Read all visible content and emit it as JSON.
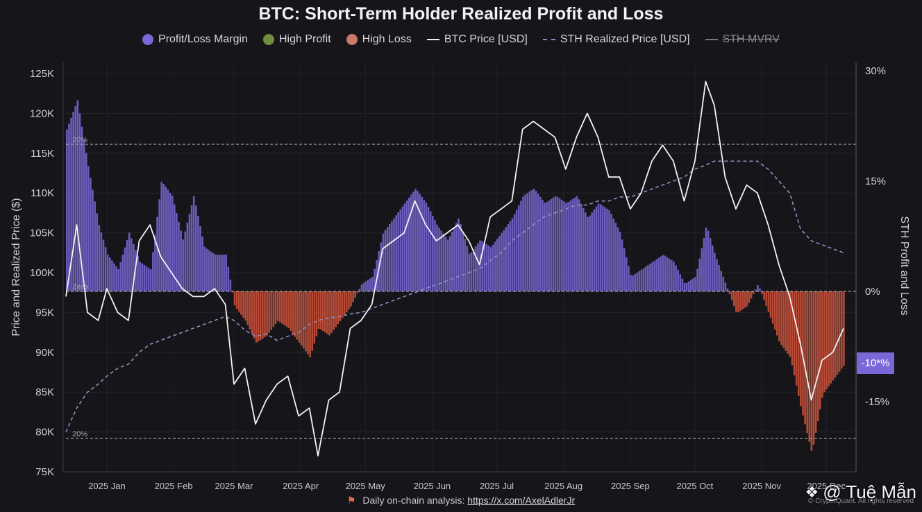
{
  "title": "BTC: Short-Term Holder Realized Profit and Loss",
  "legend": [
    {
      "label": "Profit/Loss Margin",
      "kind": "dot",
      "color": "#7a68d8"
    },
    {
      "label": "High Profit",
      "kind": "dot",
      "color": "#6f8d3a"
    },
    {
      "label": "High Loss",
      "kind": "dot",
      "color": "#c97a68"
    },
    {
      "label": "BTC Price [USD]",
      "kind": "line",
      "color": "#f2f2f5"
    },
    {
      "label": "STH Realized Price [USD]",
      "kind": "dashed",
      "color": "#8a92c0"
    },
    {
      "label": "STH MVRV",
      "kind": "grey",
      "color": "#77777f",
      "disabled": true
    }
  ],
  "axes": {
    "left_label": "Price and Realized Price ($)",
    "right_label": "STH Profit and Loss",
    "left_ticks": [
      "125K",
      "120K",
      "115K",
      "110K",
      "105K",
      "100K",
      "95K",
      "90K",
      "85K",
      "80K",
      "75K"
    ],
    "right_ticks": [
      "30%",
      "15%",
      "0%",
      "-15%"
    ],
    "x_ticks": [
      "2025 Jan",
      "2025 Feb",
      "2025 Mar",
      "2025 Apr",
      "2025 May",
      "2025 Jun",
      "2025 Jul",
      "2025 Aug",
      "2025 Sep",
      "2025 Oct",
      "2025 Nov",
      "2025 Dec"
    ]
  },
  "ref_lines": {
    "upper": "20%",
    "zero": "Zero",
    "lower": "20%"
  },
  "current_value_badge": "-10*%",
  "footer": {
    "text": "Daily on-chain analysis:",
    "link": "https://x.com/AxelAdlerJr"
  },
  "credit": "© CryptoQuant. All rights reserved",
  "watermark": "@ Tuệ Mẫn",
  "chart_data": {
    "type": "area",
    "title": "BTC: Short-Term Holder Realized Profit and Loss",
    "x": [
      "2024-12-13",
      "2024-12-18",
      "2024-12-23",
      "2024-12-28",
      "2025-01-01",
      "2025-01-06",
      "2025-01-11",
      "2025-01-16",
      "2025-01-21",
      "2025-01-26",
      "2025-01-31",
      "2025-02-05",
      "2025-02-10",
      "2025-02-15",
      "2025-02-20",
      "2025-02-25",
      "2025-03-01",
      "2025-03-06",
      "2025-03-11",
      "2025-03-16",
      "2025-03-21",
      "2025-03-26",
      "2025-03-31",
      "2025-04-05",
      "2025-04-09",
      "2025-04-14",
      "2025-04-19",
      "2025-04-24",
      "2025-04-29",
      "2025-05-04",
      "2025-05-09",
      "2025-05-14",
      "2025-05-19",
      "2025-05-24",
      "2025-05-29",
      "2025-06-03",
      "2025-06-08",
      "2025-06-13",
      "2025-06-18",
      "2025-06-23",
      "2025-06-28",
      "2025-07-03",
      "2025-07-08",
      "2025-07-13",
      "2025-07-18",
      "2025-07-23",
      "2025-07-28",
      "2025-08-02",
      "2025-08-07",
      "2025-08-12",
      "2025-08-17",
      "2025-08-22",
      "2025-08-27",
      "2025-09-01",
      "2025-09-06",
      "2025-09-11",
      "2025-09-16",
      "2025-09-21",
      "2025-09-26",
      "2025-10-01",
      "2025-10-06",
      "2025-10-10",
      "2025-10-15",
      "2025-10-20",
      "2025-10-25",
      "2025-10-30",
      "2025-11-04",
      "2025-11-09",
      "2025-11-14",
      "2025-11-19",
      "2025-11-24",
      "2025-11-29",
      "2025-12-04",
      "2025-12-09"
    ],
    "series": [
      {
        "name": "Profit/Loss Margin",
        "unit": "%",
        "axis": "right",
        "values": [
          22,
          26,
          17,
          9,
          5,
          3,
          8,
          4,
          3,
          15,
          13,
          7,
          13,
          6,
          5,
          5,
          -2,
          -4,
          -7,
          -6,
          -4,
          -5,
          -7,
          -9,
          -5,
          -6,
          -4,
          -2,
          1,
          2,
          8,
          10,
          12,
          14,
          12,
          9,
          7,
          10,
          5,
          7,
          6,
          8,
          10,
          13,
          14,
          12,
          13,
          12,
          13,
          10,
          12,
          11,
          8,
          2,
          3,
          4,
          5,
          4,
          1,
          2,
          9,
          5,
          1,
          -3,
          -2,
          1,
          -3,
          -7,
          -9,
          -16,
          -22,
          -14,
          -12,
          -10
        ]
      },
      {
        "name": "BTC Price [USD]",
        "unit": "USD",
        "axis": "left",
        "values": [
          97000,
          106000,
          95000,
          94000,
          98000,
          95000,
          94000,
          104000,
          106000,
          102000,
          100000,
          98000,
          97000,
          97000,
          98000,
          96000,
          86000,
          88000,
          81000,
          84000,
          86000,
          87000,
          82000,
          83000,
          77000,
          84000,
          85000,
          93000,
          94000,
          96000,
          103000,
          104000,
          105000,
          109000,
          106000,
          104000,
          105000,
          106000,
          104000,
          101000,
          107000,
          108000,
          109000,
          118000,
          119000,
          118000,
          117000,
          113000,
          117000,
          120000,
          117000,
          112000,
          112000,
          108000,
          110000,
          114000,
          116000,
          114000,
          109000,
          114000,
          124000,
          121000,
          112000,
          108000,
          111000,
          110000,
          106000,
          101000,
          97000,
          91000,
          84000,
          89000,
          90000,
          93000
        ]
      },
      {
        "name": "STH Realized Price [USD]",
        "unit": "USD",
        "axis": "left",
        "values": [
          80000,
          83000,
          85000,
          86000,
          87000,
          88000,
          88500,
          90000,
          91000,
          91500,
          92000,
          92500,
          93000,
          93500,
          94000,
          94500,
          94000,
          92800,
          92000,
          92300,
          91500,
          92000,
          92500,
          93500,
          94000,
          94300,
          94500,
          94800,
          95000,
          95500,
          96000,
          96500,
          97000,
          97500,
          98000,
          98500,
          99000,
          99500,
          100000,
          100500,
          101500,
          102500,
          104000,
          105000,
          106000,
          107000,
          107500,
          108000,
          108500,
          108500,
          109000,
          109000,
          109500,
          109500,
          110000,
          110500,
          111000,
          111500,
          112000,
          113000,
          113500,
          114000,
          114000,
          114000,
          114000,
          114000,
          113000,
          111500,
          110000,
          105500,
          104000,
          103500,
          103000,
          102500
        ]
      }
    ],
    "y_left_range": [
      75000,
      125000
    ],
    "y_right_range": [
      -25,
      30
    ],
    "reference_lines_pct": [
      20,
      0,
      -20
    ],
    "xlabel": "",
    "ylabel": "Price and Realized Price ($)",
    "y2label": "STH Profit and Loss"
  }
}
